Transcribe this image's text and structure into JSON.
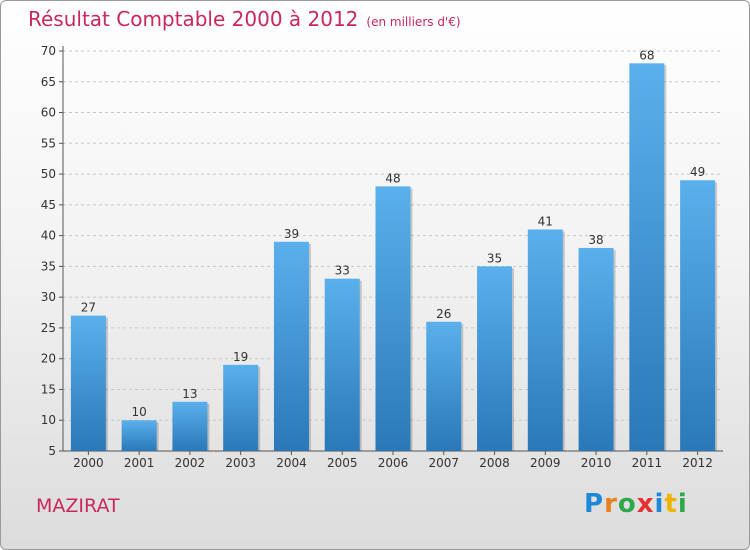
{
  "title": "Résultat Comptable 2000 à 2012",
  "subtitle": "(en milliers d'€)",
  "town": "MAZIRAT",
  "brand": {
    "letters": [
      "P",
      "r",
      "o",
      "x",
      "i",
      "t",
      "i"
    ],
    "colors": [
      "#1e88d8",
      "#e8801e",
      "#2fa84a",
      "#e23232",
      "#1e88d8",
      "#f0b400",
      "#2fa84a"
    ]
  },
  "colors": {
    "bar_light": "#5ab0ec",
    "bar_dark": "#2a78b8",
    "accent": "#c8285a",
    "grid": "#c8c8c8"
  },
  "chart_data": {
    "type": "bar",
    "categories": [
      "2000",
      "2001",
      "2002",
      "2003",
      "2004",
      "2005",
      "2006",
      "2007",
      "2008",
      "2009",
      "2010",
      "2011",
      "2012"
    ],
    "values": [
      27,
      10,
      13,
      19,
      39,
      33,
      48,
      26,
      35,
      41,
      38,
      68,
      49
    ],
    "yticks": [
      5,
      10,
      15,
      20,
      25,
      30,
      35,
      40,
      45,
      50,
      55,
      60,
      65,
      70
    ],
    "ylim": [
      5,
      70
    ],
    "title": "Résultat Comptable 2000 à 2012",
    "xlabel": "",
    "ylabel": "",
    "grid": true
  }
}
